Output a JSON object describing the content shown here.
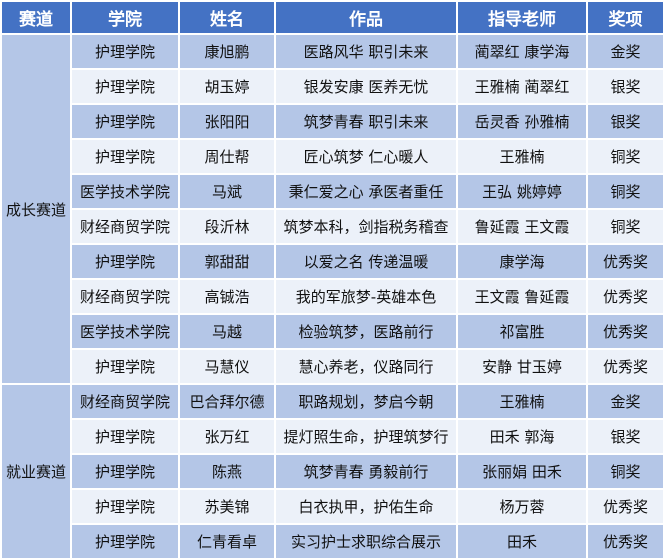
{
  "headers": [
    "赛道",
    "学院",
    "姓名",
    "作品",
    "指导老师",
    "奖项"
  ],
  "tracks": [
    "成长赛道",
    "就业赛道"
  ],
  "rows": [
    [
      "护理学院",
      "康旭鹏",
      "医路风华  职引未来",
      "蔺翠红  康学海",
      "金奖"
    ],
    [
      "护理学院",
      "胡玉婷",
      "银发安康  医养无忧",
      "王雅楠  蔺翠红",
      "银奖"
    ],
    [
      "护理学院",
      "张阳阳",
      "筑梦青春  职引未来",
      "岳灵香  孙雅楠",
      "银奖"
    ],
    [
      "护理学院",
      "周仕帮",
      "匠心筑梦  仁心暖人",
      "王雅楠",
      "铜奖"
    ],
    [
      "医学技术学院",
      "马斌",
      "秉仁爱之心  承医者重任",
      "王弘  姚婷婷",
      "铜奖"
    ],
    [
      "财经商贸学院",
      "段沂林",
      "筑梦本科，剑指税务稽查",
      "鲁延霞  王文霞",
      "铜奖"
    ],
    [
      "护理学院",
      "郭甜甜",
      "以爱之名  传递温暖",
      "康学海",
      "优秀奖"
    ],
    [
      "财经商贸学院",
      "高铖浩",
      "我的军旅梦-英雄本色",
      "王文霞  鲁延霞",
      "优秀奖"
    ],
    [
      "医学技术学院",
      "马越",
      "检验筑梦，医路前行",
      "祁富胜",
      "优秀奖"
    ],
    [
      "护理学院",
      "马慧仪",
      "慧心养老，仪路同行",
      "安静  甘玉婷",
      "优秀奖"
    ],
    [
      "财经商贸学院",
      "巴合拜尔德",
      "职路规划，梦启今朝",
      "王雅楠",
      "金奖"
    ],
    [
      "护理学院",
      "张万红",
      "提灯照生命，护理筑梦行",
      "田禾  郭海",
      "银奖"
    ],
    [
      "护理学院",
      "陈燕",
      "筑梦青春  勇毅前行",
      "张丽娟  田禾",
      "铜奖"
    ],
    [
      "护理学院",
      "苏美锦",
      "白衣执甲，护佑生命",
      "杨万蓉",
      "优秀奖"
    ],
    [
      "护理学院",
      "仁青看卓",
      "实习护士求职综合展示",
      "田禾",
      "优秀奖"
    ]
  ],
  "colors": {
    "header": "#4472c4",
    "row_dark": "#b4c6e7",
    "row_light": "#ecf1f9"
  }
}
